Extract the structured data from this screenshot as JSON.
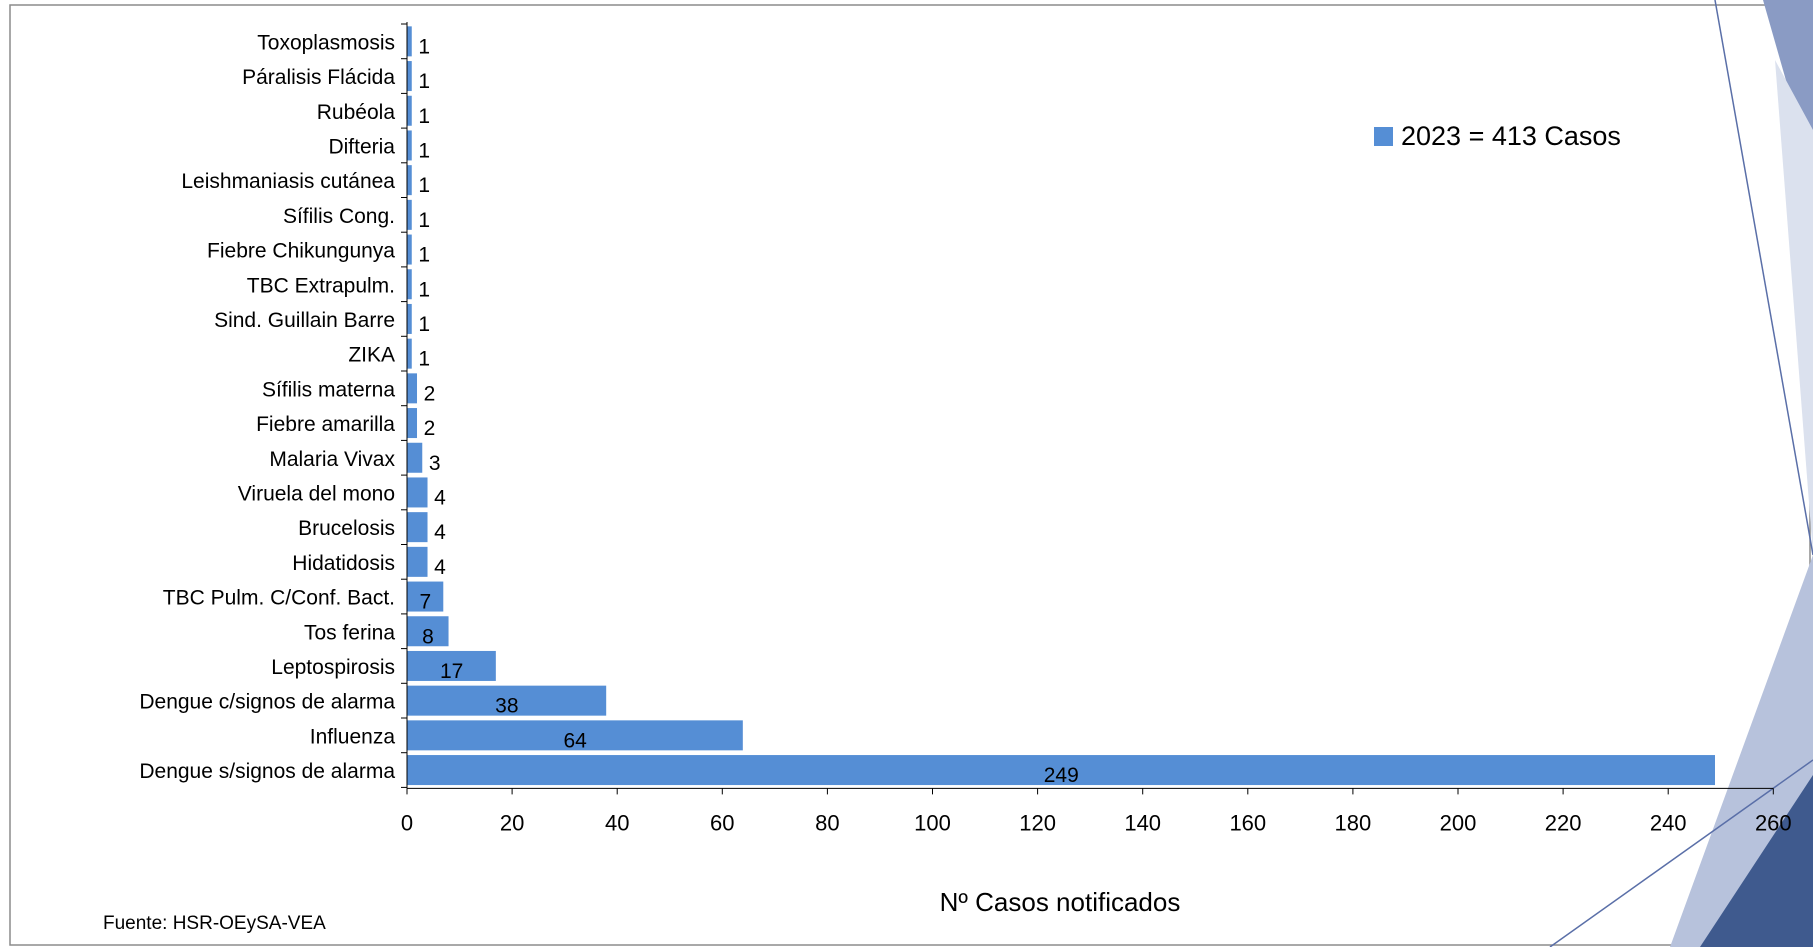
{
  "chart_data": {
    "type": "bar",
    "orientation": "horizontal",
    "categories": [
      "Toxoplasmosis",
      "Páralisis Flácida",
      "Rubéola",
      "Difteria",
      "Leishmaniasis cutánea",
      "Sífilis Cong.",
      "Fiebre Chikungunya",
      "TBC Extrapulm.",
      "Sind. Guillain Barre",
      "ZIKA",
      "Sífilis materna",
      "Fiebre amarilla",
      "Malaria Vivax",
      "Viruela del mono",
      "Brucelosis",
      "Hidatidosis",
      "TBC Pulm. C/Conf. Bact.",
      "Tos ferina",
      "Leptospirosis",
      "Dengue c/signos de alarma",
      "Influenza",
      "Dengue s/signos de alarma"
    ],
    "series": [
      {
        "name": "2023 = 413 Casos",
        "values": [
          1,
          1,
          1,
          1,
          1,
          1,
          1,
          1,
          1,
          1,
          2,
          2,
          3,
          4,
          4,
          4,
          7,
          8,
          17,
          38,
          64,
          249
        ]
      }
    ],
    "xlabel": "Nº Casos notificados",
    "ylabel": "",
    "xlim": [
      0,
      260
    ],
    "xticks": [
      0,
      20,
      40,
      60,
      80,
      100,
      120,
      140,
      160,
      180,
      200,
      220,
      240,
      260
    ],
    "legend_position": "top-right",
    "grid": false,
    "colors": {
      "bar": "#558ed5",
      "bar_edge": "#ffffff",
      "axis": "#000000"
    }
  },
  "source_note": "Fuente: HSR-OEySA-VEA"
}
